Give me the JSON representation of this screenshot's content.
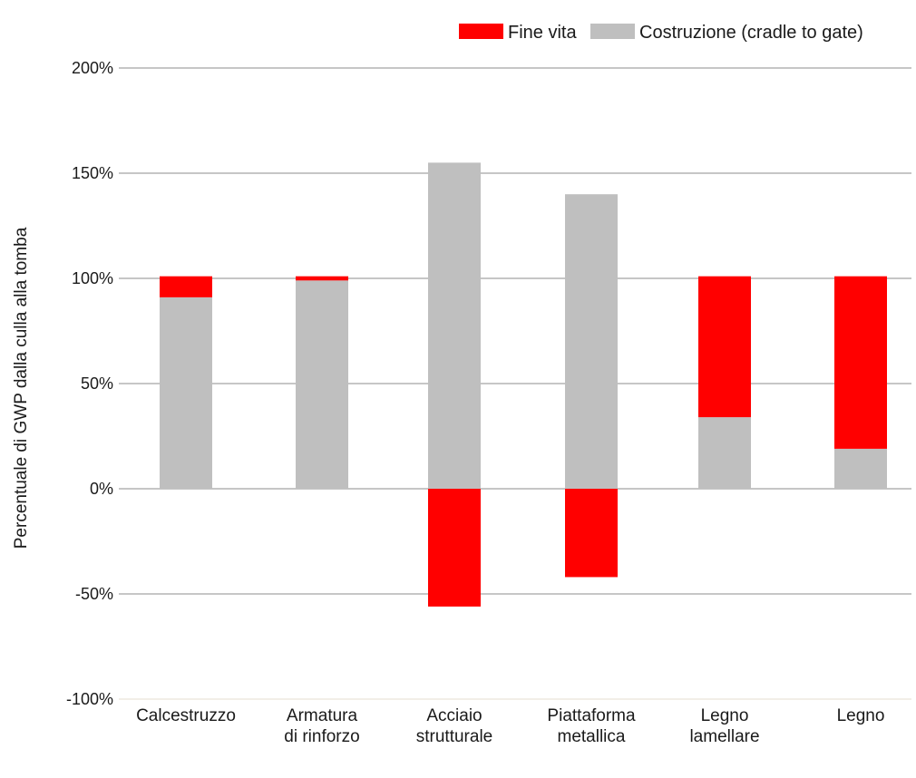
{
  "chart_data": {
    "type": "bar",
    "stacked": true,
    "title": "",
    "xlabel": "",
    "ylabel": "Percentuale di GWP dalla culla alla tomba",
    "ylim": [
      -100,
      200
    ],
    "yticks": [
      200,
      150,
      100,
      50,
      0,
      -50,
      -100
    ],
    "ytick_labels": [
      "200%",
      "150%",
      "100%",
      "50%",
      "0%",
      "-50%",
      "-100%"
    ],
    "grid": true,
    "legend_position": "top-right",
    "categories": [
      [
        "Calcestruzzo"
      ],
      [
        "Armatura",
        "di rinforzo"
      ],
      [
        "Acciaio",
        "strutturale"
      ],
      [
        "Piattaforma",
        "metallica"
      ],
      [
        "Legno",
        "lamellare"
      ],
      [
        "Legno"
      ]
    ],
    "series": [
      {
        "name": "Costruzione (cradle to gate)",
        "color": "#bfbfbf",
        "values": [
          91,
          99,
          155,
          140,
          34,
          19
        ]
      },
      {
        "name": "Fine vita",
        "color": "#ff0000",
        "values": [
          10,
          2,
          -56,
          -42,
          67,
          82
        ]
      }
    ],
    "legend_order": [
      1,
      0
    ]
  }
}
